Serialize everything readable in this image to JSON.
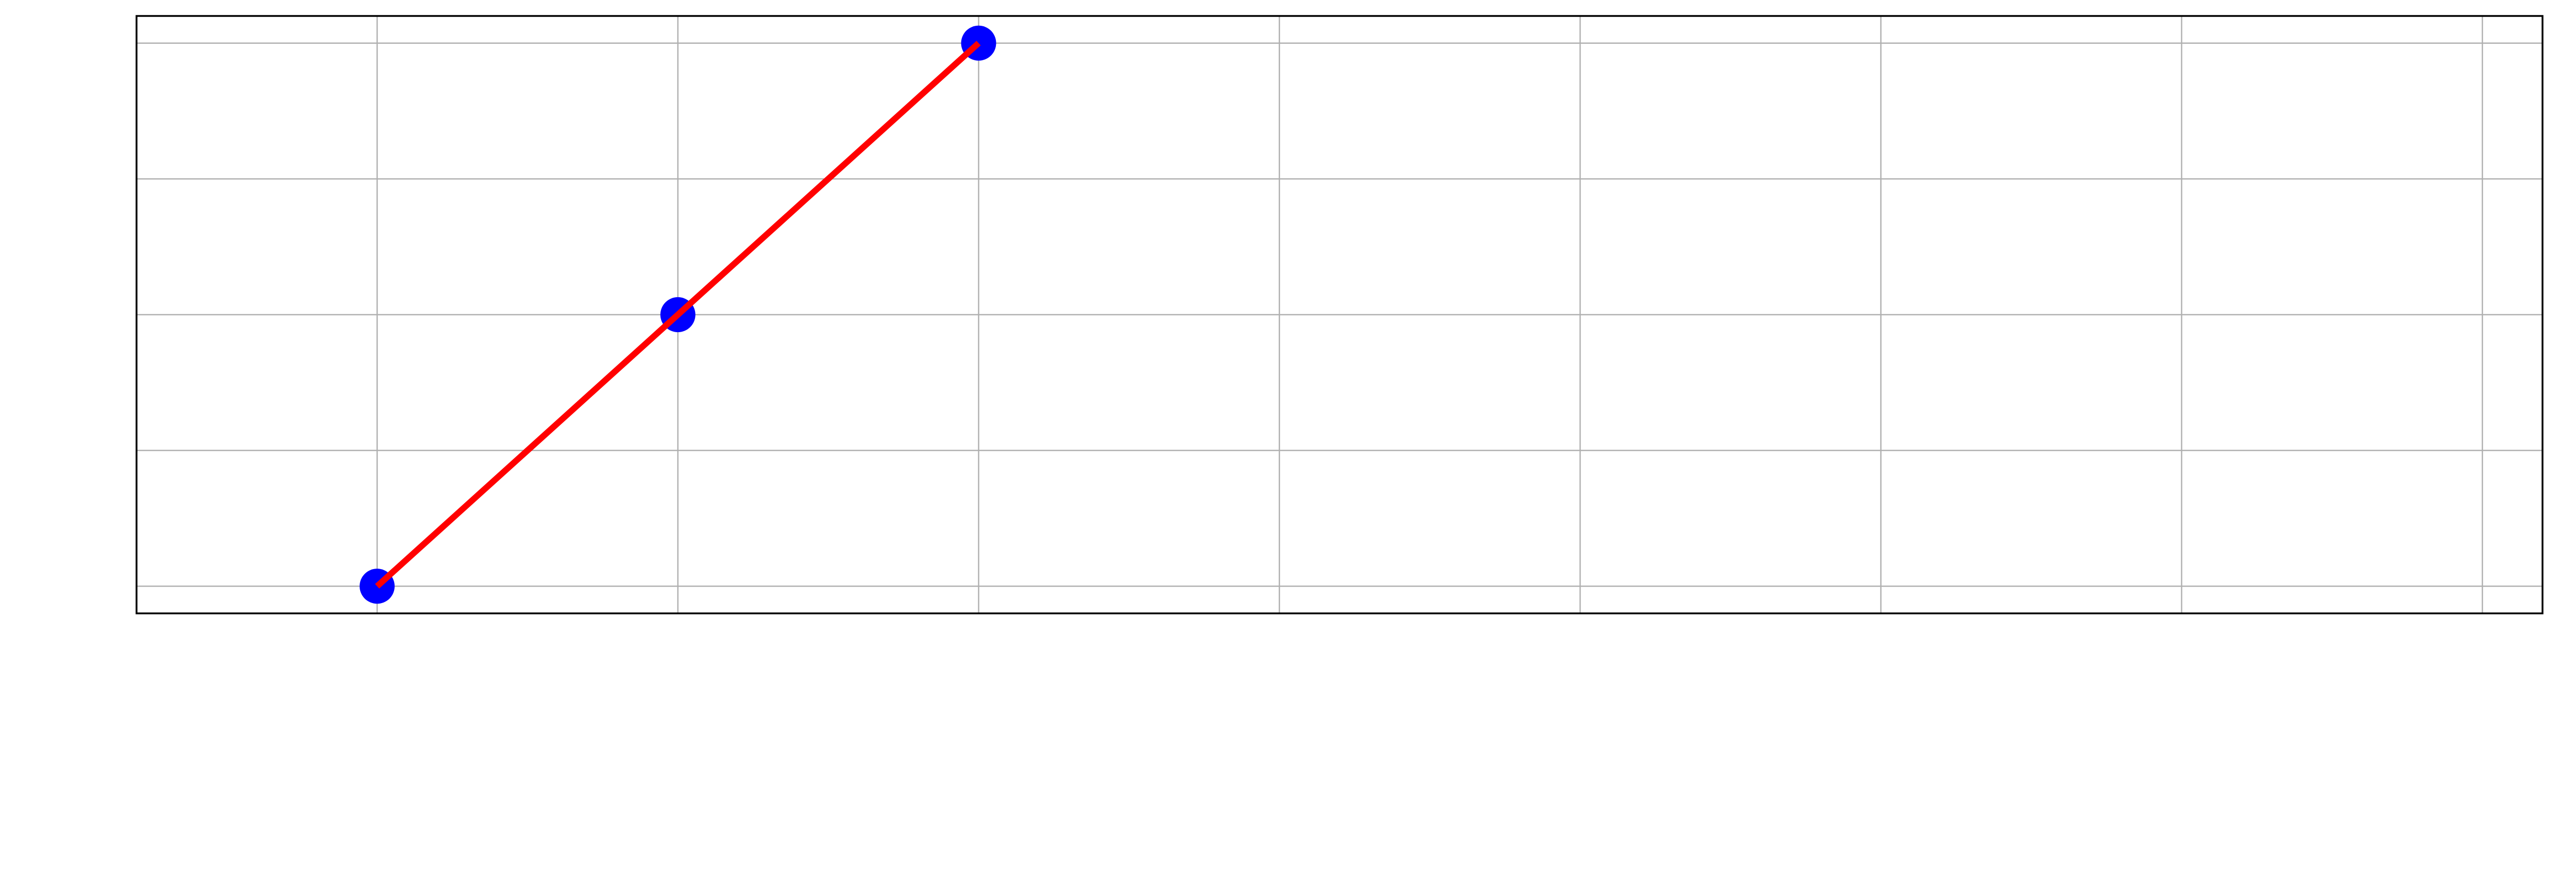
{
  "chart_data": {
    "type": "line",
    "title": "",
    "xlabel": "",
    "ylabel": "",
    "x": [
      1,
      2,
      3
    ],
    "series": [
      {
        "values": [
          0,
          1,
          2
        ]
      }
    ],
    "xlim": [
      0.2,
      8.2
    ],
    "ylim": [
      -0.1,
      2.1
    ],
    "xgrid": [
      1,
      2,
      3,
      4,
      5,
      6,
      7,
      8
    ],
    "ygrid": [
      0,
      0.5,
      1,
      1.5,
      2
    ],
    "grid": true,
    "tick_labels_visible": false,
    "colors": {
      "line": "#ff0000",
      "marker": "#0000ff",
      "grid": "#b0b0b0",
      "frame": "#000000",
      "background": "#ffffff"
    }
  }
}
